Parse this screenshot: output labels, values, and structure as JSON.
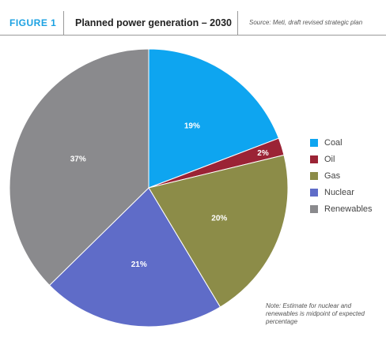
{
  "header": {
    "figure_label": "FIGURE 1",
    "title": "Planned power generation – 2030",
    "source": "Source: Meti, draft revised strategic plan"
  },
  "colors": {
    "accent": "#1ba1e2",
    "coal": "#0ea5f0",
    "oil": "#9b2335",
    "gas": "#8c8c48",
    "nuclear": "#5f6cc8",
    "renewables": "#8a8a8d"
  },
  "chart_data": {
    "type": "pie",
    "categories": [
      "Coal",
      "Oil",
      "Gas",
      "Nuclear",
      "Renewables"
    ],
    "values": [
      19,
      2,
      20,
      21,
      37
    ],
    "value_labels": [
      "19%",
      "2%",
      "20%",
      "21%",
      "37%"
    ],
    "start_angle": "12 o'clock",
    "direction": "clockwise",
    "legend_position": "right"
  },
  "legend": [
    {
      "label": "Coal"
    },
    {
      "label": "Oil"
    },
    {
      "label": "Gas"
    },
    {
      "label": "Nuclear"
    },
    {
      "label": "Renewables"
    }
  ],
  "note": "Note: Estimate for nuclear and renewables is midpoint of expected percentage"
}
